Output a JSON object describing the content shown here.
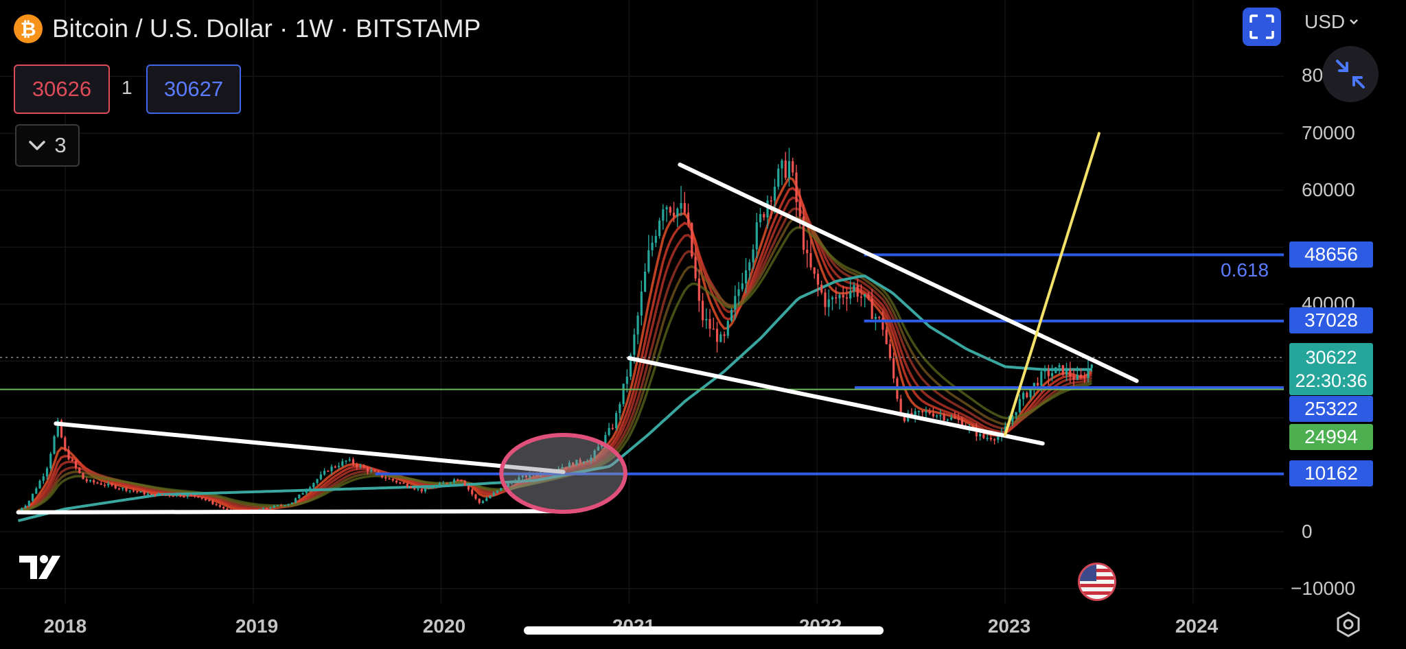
{
  "header": {
    "coin_glyph": "₿",
    "symbol": "Bitcoin / U.S. Dollar · 1W · BITSTAMP",
    "sell_price": "30626",
    "quantity": "1",
    "buy_price": "30627",
    "collapse_count": "3"
  },
  "top_right": {
    "currency": "USD",
    "partial_axis_label": "80"
  },
  "price_axis": {
    "labels": [
      "70000",
      "60000",
      "40000",
      "0",
      "−10000"
    ],
    "tags": {
      "fib_level": "48656",
      "level_2": "37028",
      "current_price": "30622",
      "countdown": "22:30:36",
      "level_3": "25322",
      "level_4": "24994",
      "level_5": "10162"
    },
    "fib_ratio": "0.618"
  },
  "time_axis": {
    "labels": [
      "2018",
      "2019",
      "2020",
      "2021",
      "2022",
      "2023",
      "2024"
    ]
  },
  "colors": {
    "up": "#26a69a",
    "down": "#ef5350",
    "blue_level": "#2d5be3",
    "green_level": "#4caf50",
    "fib": "#5b7cff"
  },
  "chart_data": {
    "type": "candlestick",
    "title": "Bitcoin / U.S. Dollar · 1W · BITSTAMP",
    "ylim": [
      -10000,
      80000
    ],
    "x_range": [
      2017.75,
      2024.5
    ],
    "x_ticks": [
      2018,
      2019,
      2020,
      2021,
      2022,
      2023,
      2024
    ],
    "price_path": [
      [
        2017.7,
        2500
      ],
      [
        2017.8,
        5000
      ],
      [
        2017.9,
        11000
      ],
      [
        2017.96,
        19000
      ],
      [
        2018.0,
        14000
      ],
      [
        2018.1,
        9000
      ],
      [
        2018.25,
        8000
      ],
      [
        2018.45,
        6500
      ],
      [
        2018.7,
        6300
      ],
      [
        2018.88,
        3500
      ],
      [
        2019.0,
        3700
      ],
      [
        2019.2,
        5000
      ],
      [
        2019.4,
        11000
      ],
      [
        2019.5,
        12500
      ],
      [
        2019.7,
        9500
      ],
      [
        2019.9,
        7200
      ],
      [
        2020.1,
        9500
      ],
      [
        2020.2,
        5000
      ],
      [
        2020.4,
        9300
      ],
      [
        2020.6,
        11000
      ],
      [
        2020.8,
        13000
      ],
      [
        2020.92,
        19000
      ],
      [
        2021.0,
        29000
      ],
      [
        2021.1,
        48000
      ],
      [
        2021.18,
        58000
      ],
      [
        2021.3,
        56000
      ],
      [
        2021.38,
        38000
      ],
      [
        2021.5,
        33000
      ],
      [
        2021.62,
        47000
      ],
      [
        2021.75,
        60000
      ],
      [
        2021.85,
        65000
      ],
      [
        2021.95,
        47000
      ],
      [
        2022.05,
        40000
      ],
      [
        2022.2,
        43000
      ],
      [
        2022.35,
        36000
      ],
      [
        2022.45,
        20000
      ],
      [
        2022.6,
        21000
      ],
      [
        2022.75,
        19500
      ],
      [
        2022.88,
        16500
      ],
      [
        2022.98,
        16800
      ],
      [
        2023.08,
        23000
      ],
      [
        2023.2,
        27500
      ],
      [
        2023.3,
        28500
      ],
      [
        2023.4,
        26500
      ],
      [
        2023.48,
        30600
      ]
    ],
    "moving_average": [
      [
        2017.7,
        1500
      ],
      [
        2018.0,
        4000
      ],
      [
        2018.5,
        6500
      ],
      [
        2019.0,
        7000
      ],
      [
        2019.5,
        7500
      ],
      [
        2020.0,
        8000
      ],
      [
        2020.5,
        9000
      ],
      [
        2020.9,
        11500
      ],
      [
        2021.1,
        17000
      ],
      [
        2021.3,
        23000
      ],
      [
        2021.5,
        28000
      ],
      [
        2021.7,
        34000
      ],
      [
        2021.9,
        41000
      ],
      [
        2022.1,
        44000
      ],
      [
        2022.25,
        45000
      ],
      [
        2022.4,
        42000
      ],
      [
        2022.6,
        36000
      ],
      [
        2022.8,
        32000
      ],
      [
        2023.0,
        29000
      ],
      [
        2023.2,
        28500
      ],
      [
        2023.48,
        28500
      ]
    ],
    "trendlines": [
      {
        "color": "white",
        "from": [
          2017.95,
          19000
        ],
        "to": [
          2020.65,
          10500
        ]
      },
      {
        "color": "white",
        "from": [
          2017.75,
          3400
        ],
        "to": [
          2020.6,
          3600
        ]
      },
      {
        "color": "white",
        "from": [
          2021.27,
          64500
        ],
        "to": [
          2023.7,
          26500
        ]
      },
      {
        "color": "white",
        "from": [
          2021.0,
          30500
        ],
        "to": [
          2023.2,
          15500
        ]
      },
      {
        "color": "yellow",
        "from": [
          2023.0,
          17000
        ],
        "to": [
          2023.5,
          70000
        ]
      }
    ],
    "levels": [
      {
        "price": 48656,
        "color": "blue",
        "from": 2022.25
      },
      {
        "price": 37028,
        "color": "blue",
        "from": 2022.25
      },
      {
        "price": 30622,
        "color": "teal",
        "style": "dotted"
      },
      {
        "price": 25322,
        "color": "blue",
        "from": 2022.2
      },
      {
        "price": 24994,
        "color": "green"
      },
      {
        "price": 10162,
        "color": "blue",
        "from": 2019.65
      }
    ],
    "highlight_ellipse": {
      "x_range": [
        2020.32,
        2020.98
      ],
      "y_range": [
        3500,
        17000
      ]
    }
  }
}
